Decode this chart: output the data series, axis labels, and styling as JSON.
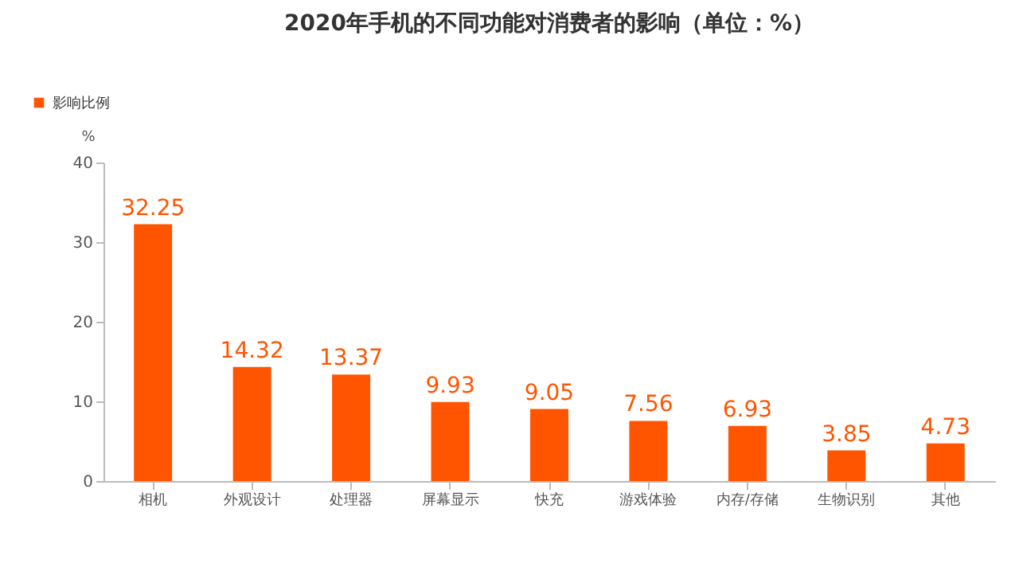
{
  "chart_data": {
    "type": "bar",
    "title": "2020年手机的不同功能对消费者的影响（单位：%）",
    "ylabel": "%",
    "categories": [
      "相机",
      "外观设计",
      "处理器",
      "屏幕显示",
      "快充",
      "游戏体验",
      "内存/存储",
      "生物识别",
      "其他"
    ],
    "series": [
      {
        "name": "影响比例",
        "color": "#ff5500",
        "values": [
          32.25,
          14.32,
          13.37,
          9.93,
          9.05,
          7.56,
          6.93,
          3.85,
          4.73
        ]
      }
    ],
    "ylim": [
      0,
      40
    ],
    "yticks": [
      0,
      10,
      20,
      30,
      40
    ],
    "data_labels": true,
    "legend": "top left",
    "grid": false
  }
}
